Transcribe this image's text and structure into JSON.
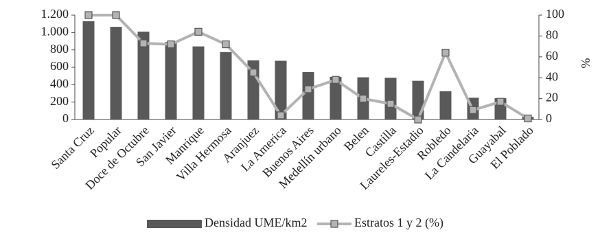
{
  "chart_data": {
    "type": "bar-line",
    "categories": [
      "Santa Cruz",
      "Popular",
      "Doce de Octubre",
      "San Javier",
      "Manrique",
      "Villa Hermosa",
      "Aranjuez",
      "La America",
      "Buenos Aires",
      "Medellín urbano",
      "Belen",
      "Castilla",
      "Laureles-Estadio",
      "Robledo",
      "La Candelaria",
      "Guayabal",
      "El Poblado"
    ],
    "series": [
      {
        "name": "Densidad UME/km2",
        "type": "bar",
        "color": "#595959",
        "values": [
          1130,
          1065,
          1010,
          890,
          840,
          775,
          680,
          675,
          545,
          490,
          485,
          480,
          445,
          325,
          250,
          245,
          30
        ]
      },
      {
        "name": "Estratos 1 y 2 (%)",
        "type": "line",
        "axis": "y2",
        "color": "#b3b3b3",
        "values": [
          100,
          100,
          73,
          72,
          84,
          72,
          45,
          4,
          29,
          38,
          20,
          15,
          0,
          64,
          9,
          17,
          1
        ]
      }
    ],
    "ylim": [
      0,
      1200
    ],
    "yticks": [
      0,
      200,
      400,
      600,
      800,
      {
        "value": 1000,
        "label": "1.000"
      },
      {
        "value": 1200,
        "label": "1.200"
      }
    ],
    "y2lim": [
      0,
      100
    ],
    "y2ticks": [
      0,
      20,
      40,
      60,
      80,
      100
    ],
    "y2label": "%",
    "legend": "bottom"
  }
}
